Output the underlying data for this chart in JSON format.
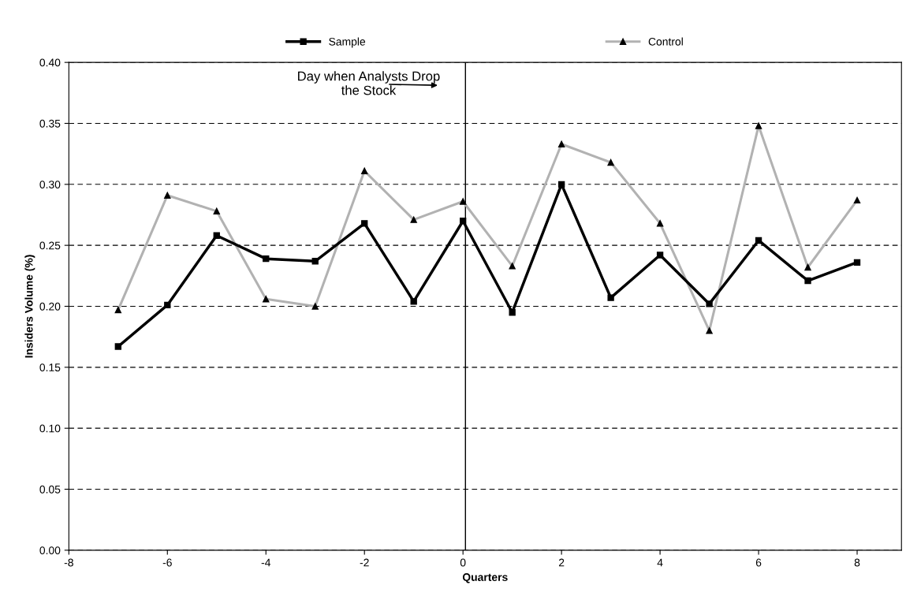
{
  "chart_data": {
    "type": "line",
    "xlabel": "Quarters",
    "ylabel": "Insiders Volume (%)",
    "x": [
      -7,
      -6,
      -5,
      -4,
      -3,
      -2,
      -1,
      0,
      1,
      2,
      3,
      4,
      5,
      6,
      7,
      8
    ],
    "series": [
      {
        "name": "Sample",
        "color": "#000000",
        "marker": "square",
        "values": [
          0.167,
          0.201,
          0.258,
          0.239,
          0.237,
          0.268,
          0.204,
          0.27,
          0.195,
          0.3,
          0.207,
          0.242,
          0.202,
          0.254,
          0.221,
          0.236
        ]
      },
      {
        "name": "Control",
        "color": "#b2b2b2",
        "marker": "triangle",
        "values": [
          0.197,
          0.291,
          0.278,
          0.206,
          0.2,
          0.311,
          0.271,
          0.286,
          0.233,
          0.333,
          0.318,
          0.268,
          0.18,
          0.348,
          0.232,
          0.287
        ]
      }
    ],
    "xlim": [
      -8,
      8.9
    ],
    "xticks": [
      -8,
      -6,
      -4,
      -2,
      0,
      2,
      4,
      6,
      8
    ],
    "ylim": [
      0,
      0.4
    ],
    "yticks": [
      {
        "value": 0,
        "label": "0.00"
      },
      {
        "value": 0.05,
        "label": "0.05"
      },
      {
        "value": 0.1,
        "label": "0.10"
      },
      {
        "value": 0.15,
        "label": "0.15"
      },
      {
        "value": 0.2,
        "label": "0.20"
      },
      {
        "value": 0.25,
        "label": "0.25"
      },
      {
        "value": 0.3,
        "label": "0.30"
      },
      {
        "value": 0.35,
        "label": "0.35"
      },
      {
        "value": 0.4,
        "label": "0.40"
      }
    ],
    "ref_lines": [
      {
        "axis": "x",
        "value": 0.05,
        "color": "#000000",
        "line_style": "solid"
      }
    ],
    "annotations": [
      "Day when Analysts Drop\nthe Stock"
    ],
    "grid": "y",
    "legend": "top",
    "line_style": "solid"
  }
}
